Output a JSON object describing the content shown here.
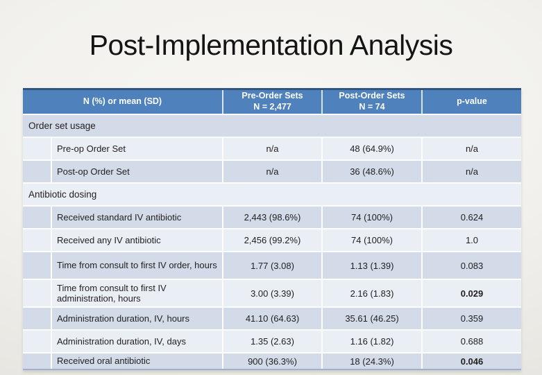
{
  "slide": {
    "title": "Post-Implementation Analysis"
  },
  "table": {
    "header": {
      "label": "N (%) or mean (SD)",
      "pre": {
        "line1": "Pre-Order Sets",
        "line2": "N = 2,477"
      },
      "post": {
        "line1": "Post-Order Sets",
        "line2": "N = 74"
      },
      "p": "p-value"
    },
    "rows": [
      {
        "type": "section",
        "label": "Order set usage"
      },
      {
        "type": "data",
        "label": "Pre-op Order Set",
        "pre": "n/a",
        "post": "48 (64.9%)",
        "p": "n/a"
      },
      {
        "type": "data",
        "label": "Post-op Order Set",
        "pre": "n/a",
        "post": "36 (48.6%)",
        "p": "n/a"
      },
      {
        "type": "section",
        "label": "Antibiotic dosing"
      },
      {
        "type": "data",
        "label": "Received standard IV antibiotic",
        "pre": "2,443 (98.6%)",
        "post": "74 (100%)",
        "p": "0.624"
      },
      {
        "type": "data",
        "label": "Received any IV antibiotic",
        "pre": "2,456 (99.2%)",
        "post": "74 (100%)",
        "p": "1.0"
      },
      {
        "type": "data",
        "label": "Time from consult to first IV order, hours",
        "pre": "1.77 (3.08)",
        "post": "1.13 (1.39)",
        "p": "0.083"
      },
      {
        "type": "data",
        "label": "Time from consult to first IV administration, hours",
        "pre": "3.00 (3.39)",
        "post": "2.16 (1.83)",
        "p": "0.029",
        "p_bold": true
      },
      {
        "type": "data",
        "label": "Administration duration, IV, hours",
        "pre": "41.10 (64.63)",
        "post": "35.61 (46.25)",
        "p": "0.359"
      },
      {
        "type": "data",
        "label": "Administration duration, IV, days",
        "pre": "1.35 (2.63)",
        "post": "1.16 (1.82)",
        "p": "0.688"
      },
      {
        "type": "data",
        "label": "Received oral antibiotic",
        "pre": "900 (36.3%)",
        "post": "18 (24.3%)",
        "p": "0.046",
        "p_bold": true
      }
    ]
  },
  "colors": {
    "header_blue": "#4F81BD",
    "header_top_border": "#30567F",
    "band_dark": "#D4DBE8",
    "band_light": "#EAEEF5",
    "bottom_border": "#9FB0CB",
    "title_text": "#141414",
    "body_text": "#1F1F1F",
    "header_text": "#FFFFFF",
    "slide_background": "#F2F1ED"
  }
}
